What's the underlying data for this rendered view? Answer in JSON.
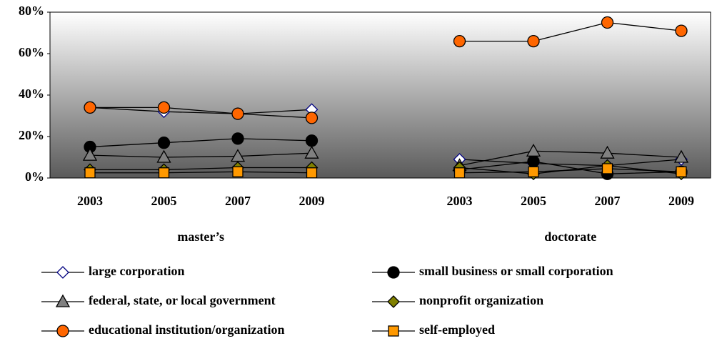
{
  "chart_data": {
    "type": "line",
    "categories": [
      "2003",
      "2005",
      "2007",
      "2009",
      null,
      "2003",
      "2005",
      "2007",
      "2009"
    ],
    "groups": [
      {
        "label": "master’s",
        "from": 0,
        "to": 3
      },
      {
        "label": "doctorate",
        "from": 5,
        "to": 8
      }
    ],
    "ylim": [
      0,
      80
    ],
    "yticks": [
      {
        "value": 0,
        "label": "0%"
      },
      {
        "value": 20,
        "label": "20%"
      },
      {
        "value": 40,
        "label": "40%"
      },
      {
        "value": 60,
        "label": "60%"
      },
      {
        "value": 80,
        "label": "80%"
      }
    ],
    "grid": false,
    "line_color": "#000000",
    "legend": "bottom",
    "series": [
      {
        "name": "large corporation",
        "marker": "diamond",
        "color": "#ffffff",
        "edgecolor": "#000080",
        "values": [
          34,
          32,
          31,
          33,
          null,
          9,
          7,
          6,
          9
        ]
      },
      {
        "name": "small business or small corporation",
        "marker": "circle",
        "color": "#000000",
        "edgecolor": "#000000",
        "values": [
          15,
          17,
          19,
          18,
          null,
          4,
          8,
          2,
          3
        ]
      },
      {
        "name": "federal, state, or local government",
        "marker": "triangle",
        "color": "#808080",
        "edgecolor": "#000000",
        "values": [
          11,
          10,
          10.5,
          12,
          null,
          6,
          13,
          12,
          10
        ]
      },
      {
        "name": "nonprofit organization",
        "marker": "diamond",
        "color": "#808000",
        "edgecolor": "#000000",
        "values": [
          4,
          4,
          5,
          5,
          null,
          5,
          2,
          6,
          2
        ]
      },
      {
        "name": "educational institution/organization",
        "marker": "circle",
        "color": "#ff6600",
        "edgecolor": "#000000",
        "values": [
          34,
          34,
          31,
          29,
          null,
          66,
          66,
          75,
          71
        ]
      },
      {
        "name": "self-employed",
        "marker": "square",
        "color": "#ff9900",
        "edgecolor": "#000000",
        "values": [
          2.5,
          2.5,
          3,
          2.5,
          null,
          2.5,
          3,
          4.5,
          3
        ]
      }
    ]
  }
}
